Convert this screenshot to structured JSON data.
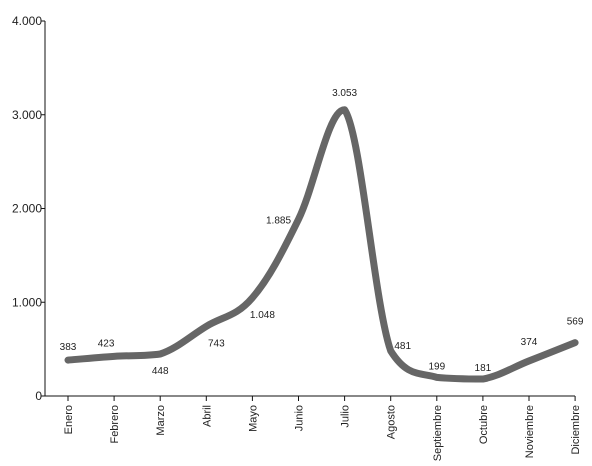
{
  "chart_data": {
    "type": "line",
    "title": "",
    "xlabel": "",
    "ylabel": "",
    "categories": [
      "Enero",
      "Febrero",
      "Marzo",
      "Abril",
      "Mayo",
      "Junio",
      "Julio",
      "Agosto",
      "Septiembre",
      "Octubre",
      "Noviembre",
      "Diciembre"
    ],
    "series": [
      {
        "values": [
          383,
          423,
          448,
          743,
          1048,
          1885,
          3053,
          481,
          199,
          181,
          374,
          569
        ],
        "color": "#666666"
      }
    ],
    "data_labels": [
      "383",
      "423",
      "448",
      "743",
      "1.048",
      "1.885",
      "3.053",
      "481",
      "199",
      "181",
      "374",
      "569"
    ],
    "ylim": [
      0,
      4000
    ],
    "yticks": [
      0,
      1000,
      2000,
      3000,
      4000
    ],
    "ytick_labels": [
      "0",
      "1.000",
      "2.000",
      "3.000",
      "4.000"
    ],
    "grid": false,
    "legend": "none"
  }
}
